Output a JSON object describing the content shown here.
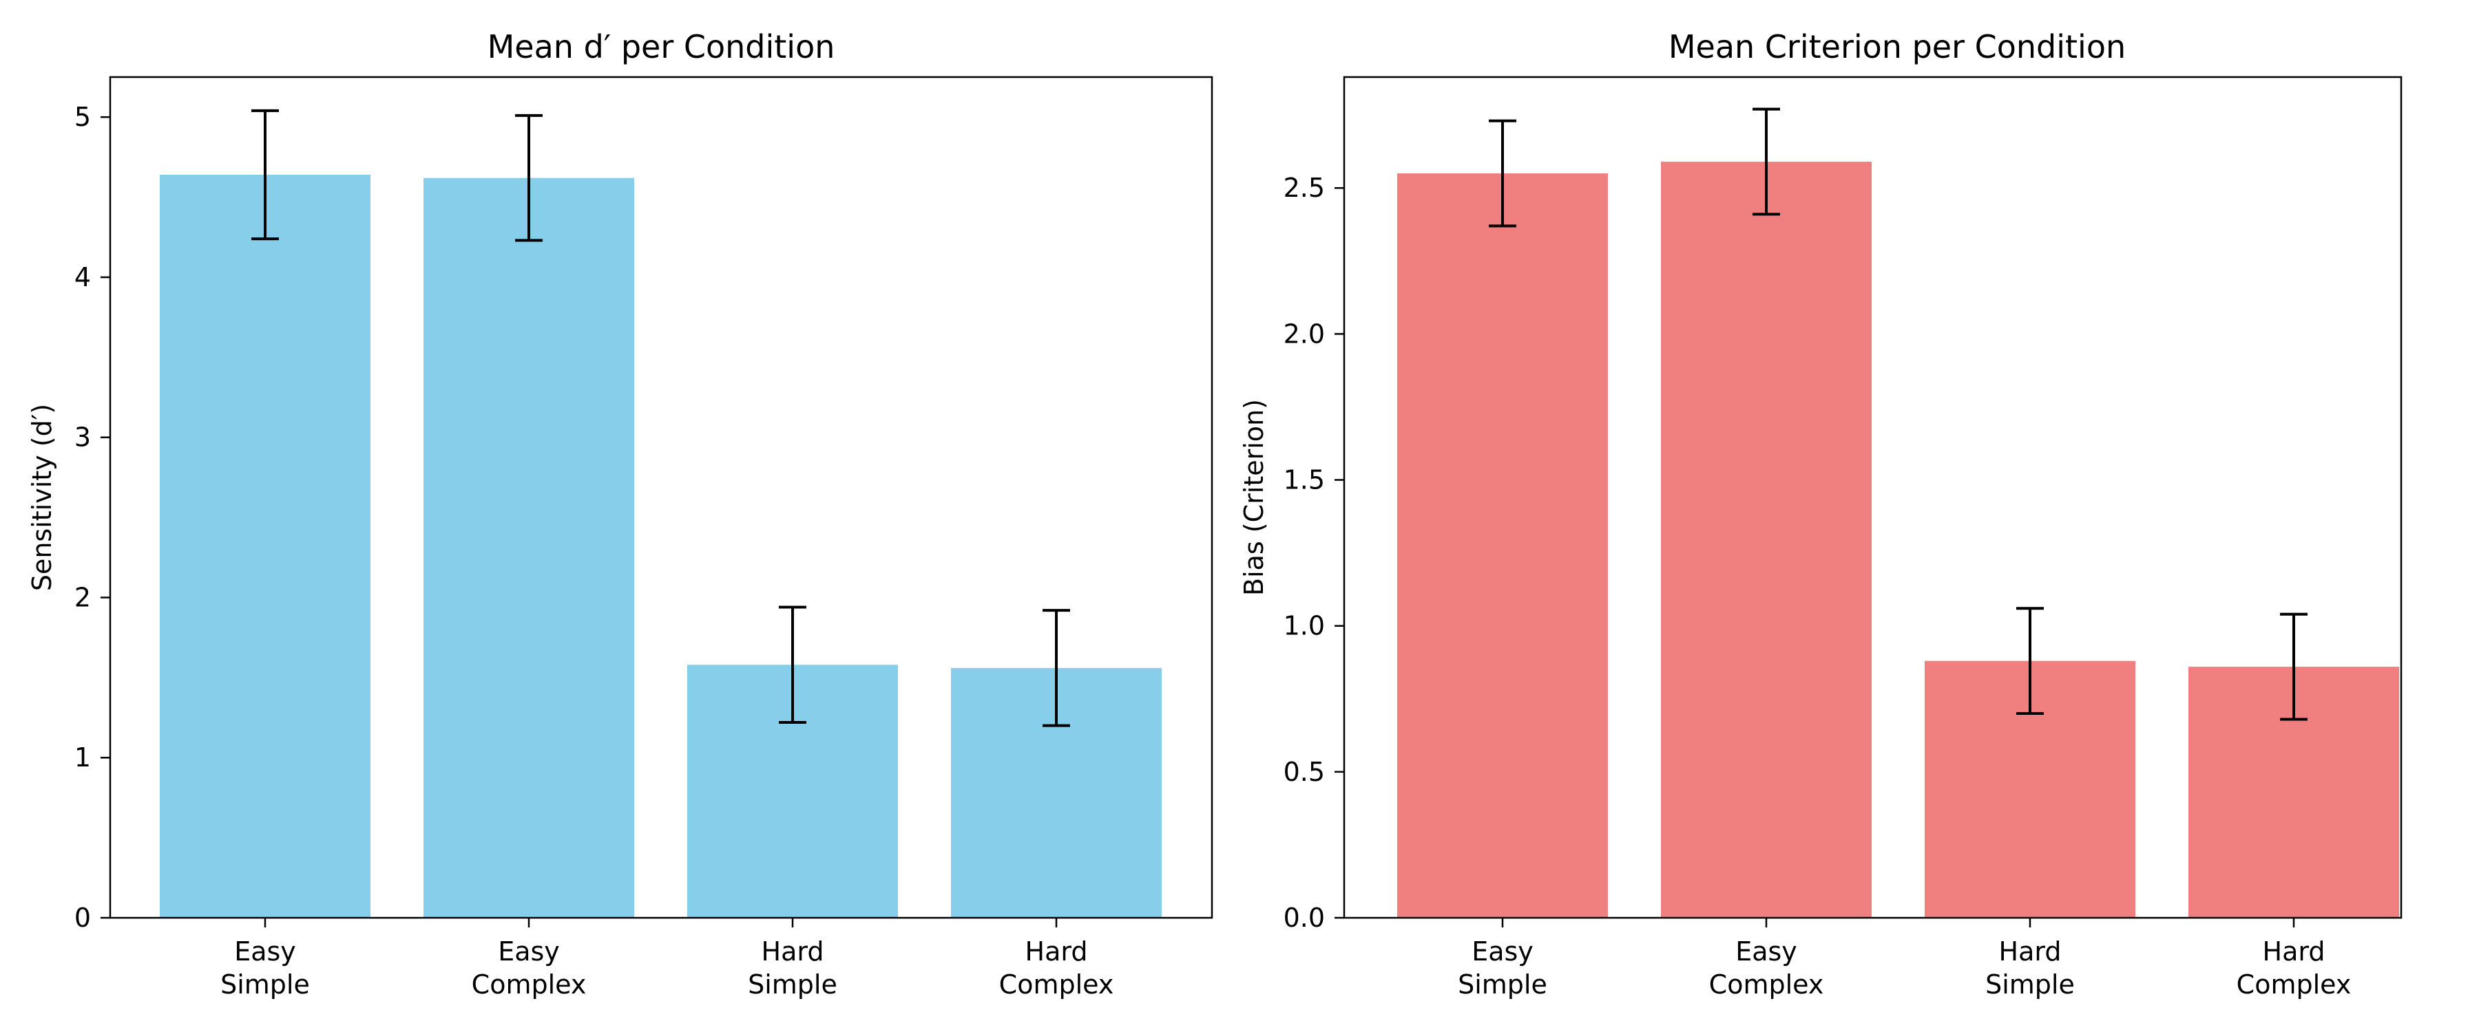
{
  "chart_data": [
    {
      "type": "bar",
      "title": "Mean d′ per Condition",
      "xlabel": "",
      "ylabel": "Sensitivity (d′)",
      "categories": [
        [
          "Easy",
          "Simple"
        ],
        [
          "Easy",
          "Complex"
        ],
        [
          "Hard",
          "Simple"
        ],
        [
          "Hard",
          "Complex"
        ]
      ],
      "values": [
        4.64,
        4.62,
        1.58,
        1.56
      ],
      "errors": [
        0.4,
        0.39,
        0.36,
        0.36
      ],
      "ylim": [
        0,
        5.25
      ],
      "yticks": [
        0,
        1,
        2,
        3,
        4,
        5
      ],
      "ytick_labels": [
        "0",
        "1",
        "2",
        "3",
        "4",
        "5"
      ],
      "bar_color": "#87ceeb",
      "grid": false,
      "legend": "none"
    },
    {
      "type": "bar",
      "title": "Mean Criterion per Condition",
      "xlabel": "",
      "ylabel": "Bias (Criterion)",
      "categories": [
        [
          "Easy",
          "Simple"
        ],
        [
          "Easy",
          "Complex"
        ],
        [
          "Hard",
          "Simple"
        ],
        [
          "Hard",
          "Complex"
        ]
      ],
      "values": [
        2.55,
        2.59,
        0.88,
        0.86
      ],
      "errors": [
        0.18,
        0.18,
        0.18,
        0.18
      ],
      "ylim": [
        0,
        2.88
      ],
      "yticks": [
        0,
        0.5,
        1.0,
        1.5,
        2.0,
        2.5
      ],
      "ytick_labels": [
        "0.0",
        "0.5",
        "1.0",
        "1.5",
        "2.0",
        "2.5"
      ],
      "bar_color": "#f08080",
      "grid": false,
      "legend": "none"
    }
  ]
}
